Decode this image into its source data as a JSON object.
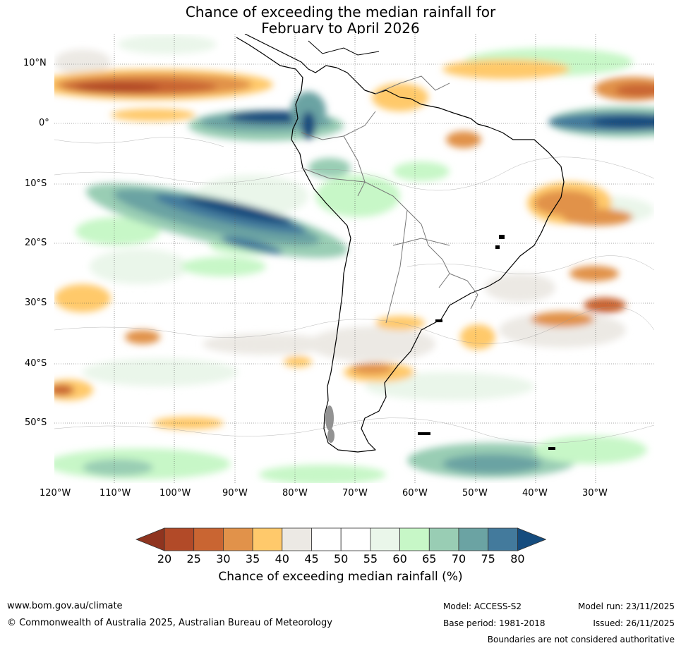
{
  "title": {
    "line1": "Chance of exceeding the median rainfall for",
    "line2": "February to April 2026"
  },
  "map": {
    "region": "South America",
    "lat_labels": [
      "10°N",
      "0°",
      "10°S",
      "20°S",
      "30°S",
      "40°S",
      "50°S"
    ],
    "lon_labels": [
      "120°W",
      "110°W",
      "100°W",
      "90°W",
      "80°W",
      "70°W",
      "60°W",
      "50°W",
      "40°W",
      "30°W"
    ],
    "colors": {
      "dry_dark": "#8f341f",
      "dry": "#b24a28",
      "dry_mid": "#c96532",
      "dry_light": "#e1924a",
      "dry_pale": "#ffc96b",
      "neutral": "#ece9e4",
      "wet_pale": "#eaf6ea",
      "wet_light": "#c7f7c7",
      "wet_mid": "#99cdb4",
      "wet": "#6ba3a3",
      "wet_dark": "#437a9c",
      "wet_darkest": "#154c7e"
    }
  },
  "colorbar": {
    "ticks": [
      "20",
      "25",
      "30",
      "35",
      "40",
      "45",
      "50",
      "55",
      "60",
      "65",
      "70",
      "75",
      "80"
    ],
    "colors": [
      "#b24a28",
      "#c96532",
      "#e1924a",
      "#ffc96b",
      "#ece9e4",
      "#ffffff",
      "#ffffff",
      "#eaf6ea",
      "#c7f7c7",
      "#99cdb4",
      "#6ba3a3",
      "#437a9c"
    ],
    "low_extend_color": "#8f341f",
    "high_extend_color": "#154c7e",
    "label": "Chance of exceeding median rainfall (%)"
  },
  "footer": {
    "url": "www.bom.gov.au/climate",
    "copyright": "© Commonwealth of Australia 2025, Australian Bureau of Meteorology",
    "model": "Model: ACCESS-S2",
    "base_period": "Base period: 1981-2018",
    "model_run": "Model run: 23/11/2025",
    "issued": "Issued: 26/11/2025",
    "disclaimer": "Boundaries are not considered authoritative"
  }
}
